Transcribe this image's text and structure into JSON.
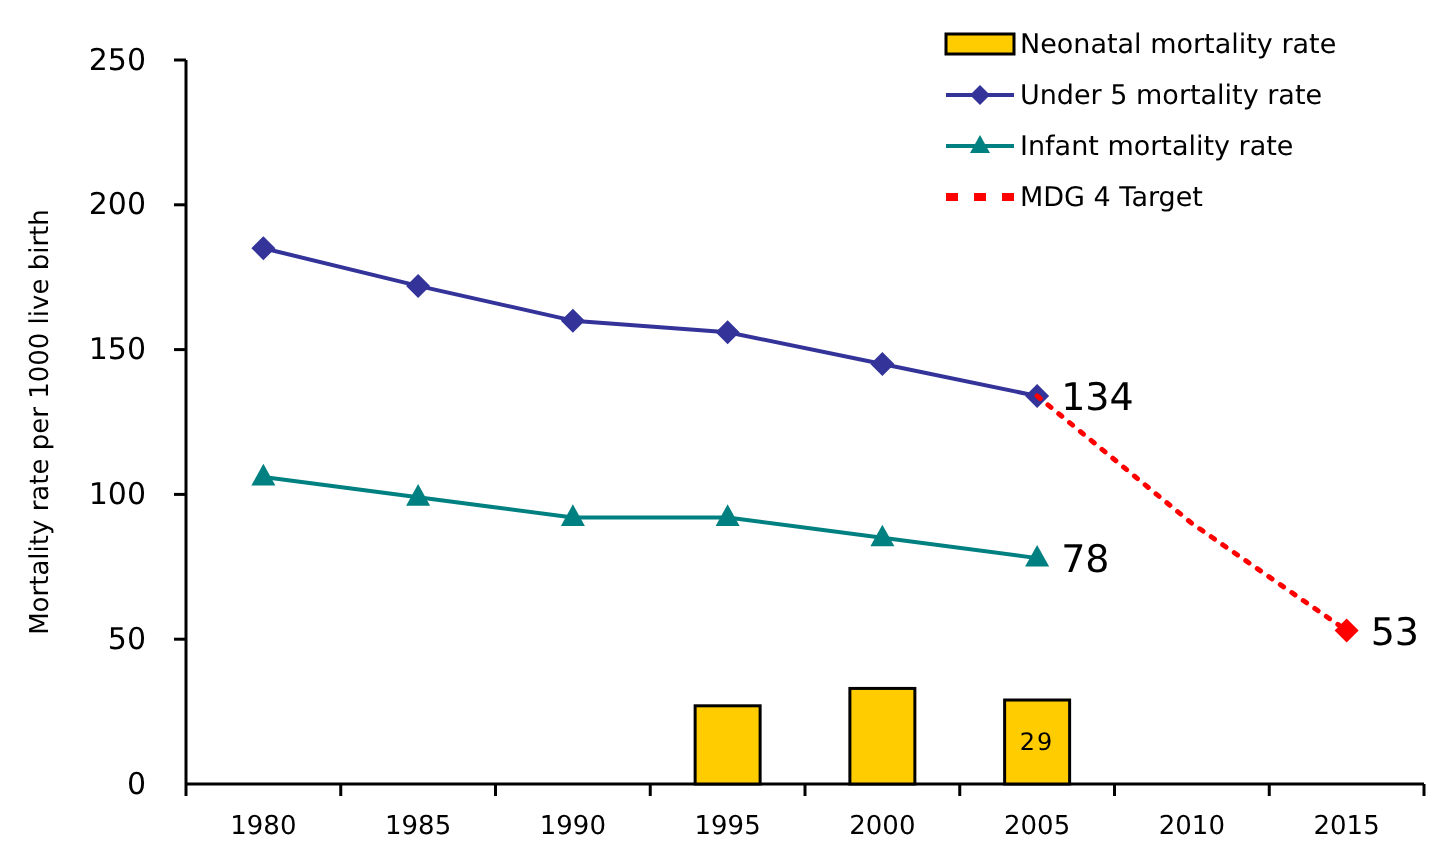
{
  "chart_data": {
    "type": "line",
    "ylabel": "Mortality rate per 1000 live birth",
    "xlim": [
      1977.5,
      2017.5
    ],
    "ylim": [
      0,
      250
    ],
    "yticks": [
      0,
      50,
      100,
      150,
      200,
      250
    ],
    "xticks": [
      1980,
      1985,
      1990,
      1995,
      2000,
      2005,
      2010,
      2015
    ],
    "grid": false,
    "legend": "top right",
    "series": [
      {
        "name": "Neonatal mortality rate",
        "type": "bar",
        "color": "#ffcc00",
        "x": [
          1995,
          2000,
          2005
        ],
        "values": [
          27,
          33,
          29
        ],
        "value_labels": [
          null,
          null,
          "29"
        ]
      },
      {
        "name": "Under 5 mortality rate",
        "color": "#333399",
        "marker": "diamond",
        "x": [
          1980,
          1985,
          1990,
          1995,
          2000,
          2005
        ],
        "values": [
          185,
          172,
          160,
          156,
          145,
          134
        ],
        "value_labels": [
          null,
          null,
          null,
          null,
          null,
          "134"
        ]
      },
      {
        "name": "Infant mortality rate",
        "color": "#008080",
        "marker": "triangle",
        "x": [
          1980,
          1985,
          1990,
          1995,
          2000,
          2005
        ],
        "values": [
          106,
          99,
          92,
          92,
          85,
          78
        ],
        "value_labels": [
          null,
          null,
          null,
          null,
          null,
          "78"
        ]
      },
      {
        "name": "MDG 4 Target",
        "color": "#ff0000",
        "marker": "none",
        "line_style": "dotted",
        "x": [
          2005,
          2010,
          2015
        ],
        "values": [
          134,
          90,
          53
        ]
      },
      {
        "type": "scatter",
        "color": "#ff0000",
        "marker": "diamond",
        "x": [
          2015
        ],
        "values": [
          53
        ],
        "value_labels": [
          "53"
        ]
      }
    ]
  }
}
